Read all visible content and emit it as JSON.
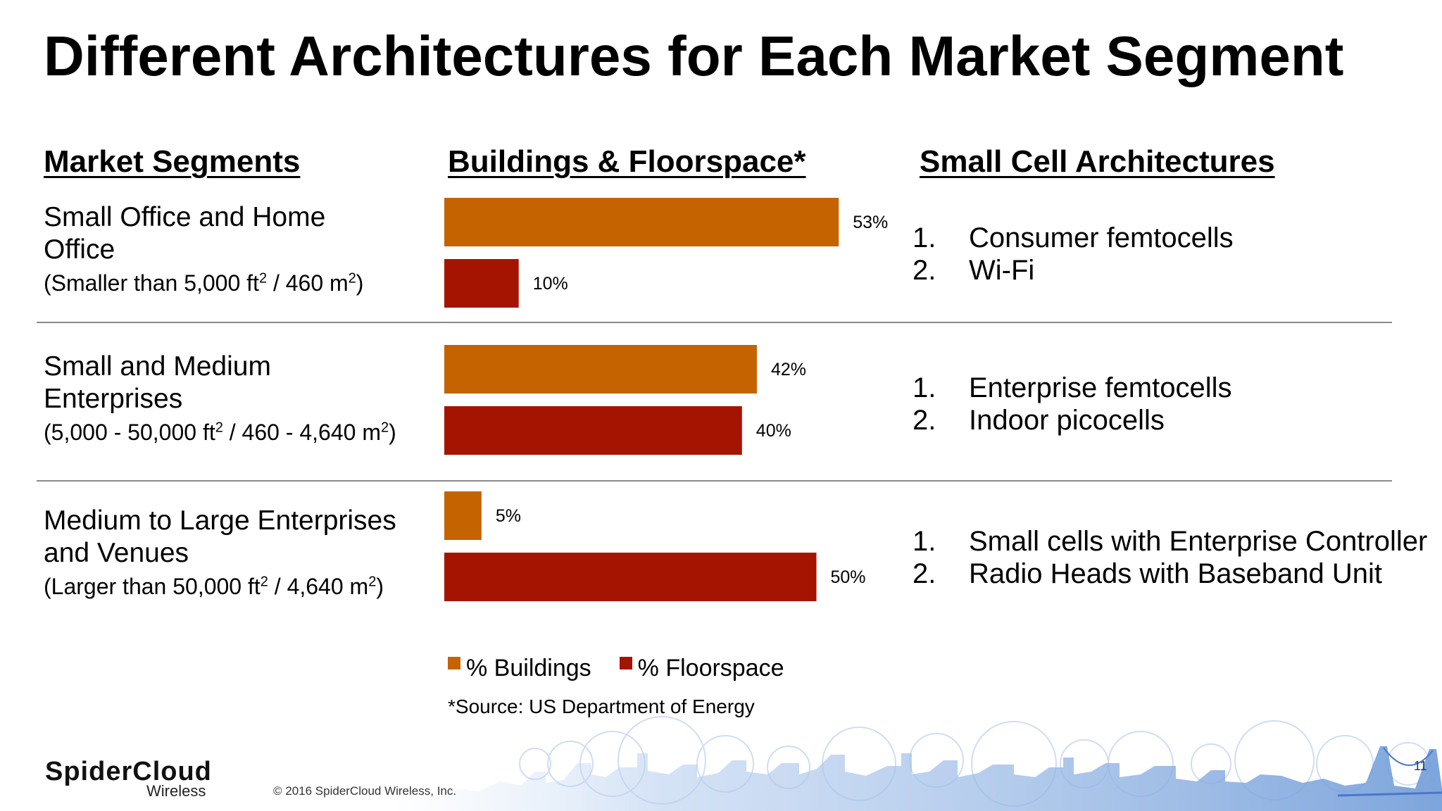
{
  "title": "Different Architectures for Each Market Segment",
  "headers": {
    "segments": "Market Segments",
    "chart": "Buildings & Floorspace*",
    "architectures": "Small Cell Architectures"
  },
  "segments": [
    {
      "name_line1": "Small Office and Home",
      "name_line2": "Office",
      "size_a": "(Smaller than 5,000 ft",
      "sup_a": "2",
      "size_b": " / 460 m",
      "sup_b": "2",
      "size_c": ")"
    },
    {
      "name_line1": "Small and Medium",
      "name_line2": "Enterprises",
      "size_a": "(5,000 - 50,000 ft",
      "sup_a": "2",
      "size_b": " / 460 - 4,640 m",
      "sup_b": "2",
      "size_c": ")"
    },
    {
      "name_line1": "Medium to Large Enterprises",
      "name_line2": "and Venues",
      "size_a": "(Larger than 50,000 ft",
      "sup_a": "2",
      "size_b": " / 4,640 m",
      "sup_b": "2",
      "size_c": ")"
    }
  ],
  "architectures": [
    [
      {
        "num": "1.",
        "text": "Consumer femtocells"
      },
      {
        "num": "2.",
        "text": "Wi-Fi"
      }
    ],
    [
      {
        "num": "1.",
        "text": "Enterprise femtocells"
      },
      {
        "num": "2.",
        "text": "Indoor picocells"
      }
    ],
    [
      {
        "num": "1.",
        "text": "Small cells with Enterprise Controller"
      },
      {
        "num": "2.",
        "text": "Radio Heads with Baseband Unit"
      }
    ]
  ],
  "chart_data": {
    "type": "bar",
    "orientation": "horizontal",
    "categories": [
      "Small Office and Home Office",
      "Small and Medium Enterprises",
      "Medium to Large Enterprises and Venues"
    ],
    "series": [
      {
        "name": "% Buildings",
        "values": [
          53,
          42,
          5
        ],
        "labels": [
          "53%",
          "42%",
          "5%"
        ],
        "color": "#c46300"
      },
      {
        "name": "% Floorspace",
        "values": [
          10,
          40,
          50
        ],
        "labels": [
          "10%",
          "40%",
          "50%"
        ],
        "color": "#a51400"
      }
    ],
    "xlim": [
      0,
      53
    ],
    "grid": false,
    "legend_position": "bottom"
  },
  "legend": {
    "buildings": "% Buildings",
    "floorspace": "% Floorspace"
  },
  "source": "*Source: US Department of Energy",
  "footer": {
    "logo_main": "SpiderCloud",
    "logo_sub": "Wireless",
    "copyright": "© 2016 SpiderCloud Wireless, Inc.",
    "page_number": "11"
  },
  "colors": {
    "buildings": "#c46300",
    "floorspace": "#a51400",
    "footer_blue": "#4a78c8"
  }
}
